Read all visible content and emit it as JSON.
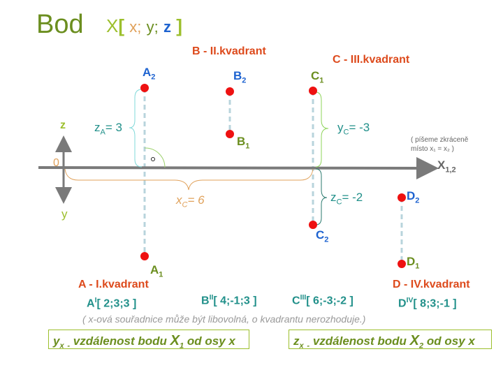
{
  "title": {
    "word": "Bod",
    "point": "X",
    "open": "[",
    "x": "x;",
    "y": "y;",
    "z": "z",
    "close": "]"
  },
  "quadrants": {
    "A": "A - I.kvadrant",
    "B": "B - II.kvadrant",
    "C": "C - III.kvadrant",
    "D": "D - IV.kvadrant"
  },
  "points": {
    "A2": {
      "base": "A",
      "sub": "2"
    },
    "A1": {
      "base": "A",
      "sub": "1"
    },
    "B2": {
      "base": "B",
      "sub": "2"
    },
    "B1": {
      "base": "B",
      "sub": "1"
    },
    "C1": {
      "base": "C",
      "sub": "1"
    },
    "C2": {
      "base": "C",
      "sub": "2"
    },
    "D2": {
      "base": "D",
      "sub": "2"
    },
    "D1": {
      "base": "D",
      "sub": "1"
    }
  },
  "axes": {
    "z": "z",
    "y": "y",
    "origin": "0",
    "x_base": "X",
    "x_sub": "1,2"
  },
  "measures": {
    "zA": {
      "base": "z",
      "sub": "A",
      "value": "= 3"
    },
    "yC": {
      "base": "y",
      "sub": "C",
      "value": "= -3"
    },
    "zC": {
      "base": "z",
      "sub": "C",
      "value": "= -2"
    },
    "xC": {
      "base": "x",
      "sub": "C",
      "value": "= 6"
    }
  },
  "note_short": {
    "line1": "( píšeme zkráceně",
    "line2": "místo  x₁ = x₂ )"
  },
  "coordinates": [
    {
      "base": "A",
      "sup": "I",
      "value": "[ 2;3;3 ]"
    },
    {
      "base": "B",
      "sup": "II",
      "value": "[ 4;-1;3 ]"
    },
    {
      "base": "C",
      "sup": "III",
      "value": "[ 6;-3;-2 ]"
    },
    {
      "base": "D",
      "sup": "IV",
      "value": "[ 8;3;-1 ]"
    }
  ],
  "note_x": "( x-ová souřadnice může být libovolná, o kvadrantu nerozhoduje.)",
  "definitions": [
    {
      "var": "y",
      "sub": "x",
      "dash": "-",
      "text": "vzdálenost bodu",
      "point": "X",
      "point_sub": "1",
      "tail": "od osy x"
    },
    {
      "var": "z",
      "sub": "x",
      "dash": "-",
      "text": "vzdálenost bodu",
      "point": "X",
      "point_sub": "2",
      "tail": "od osy x"
    }
  ],
  "colors": {
    "point": "#ee1111",
    "axis": "#7a7a7a",
    "projection": "#b8d4dc",
    "quadrant": "#dd4a1c",
    "value": "#21908a"
  }
}
